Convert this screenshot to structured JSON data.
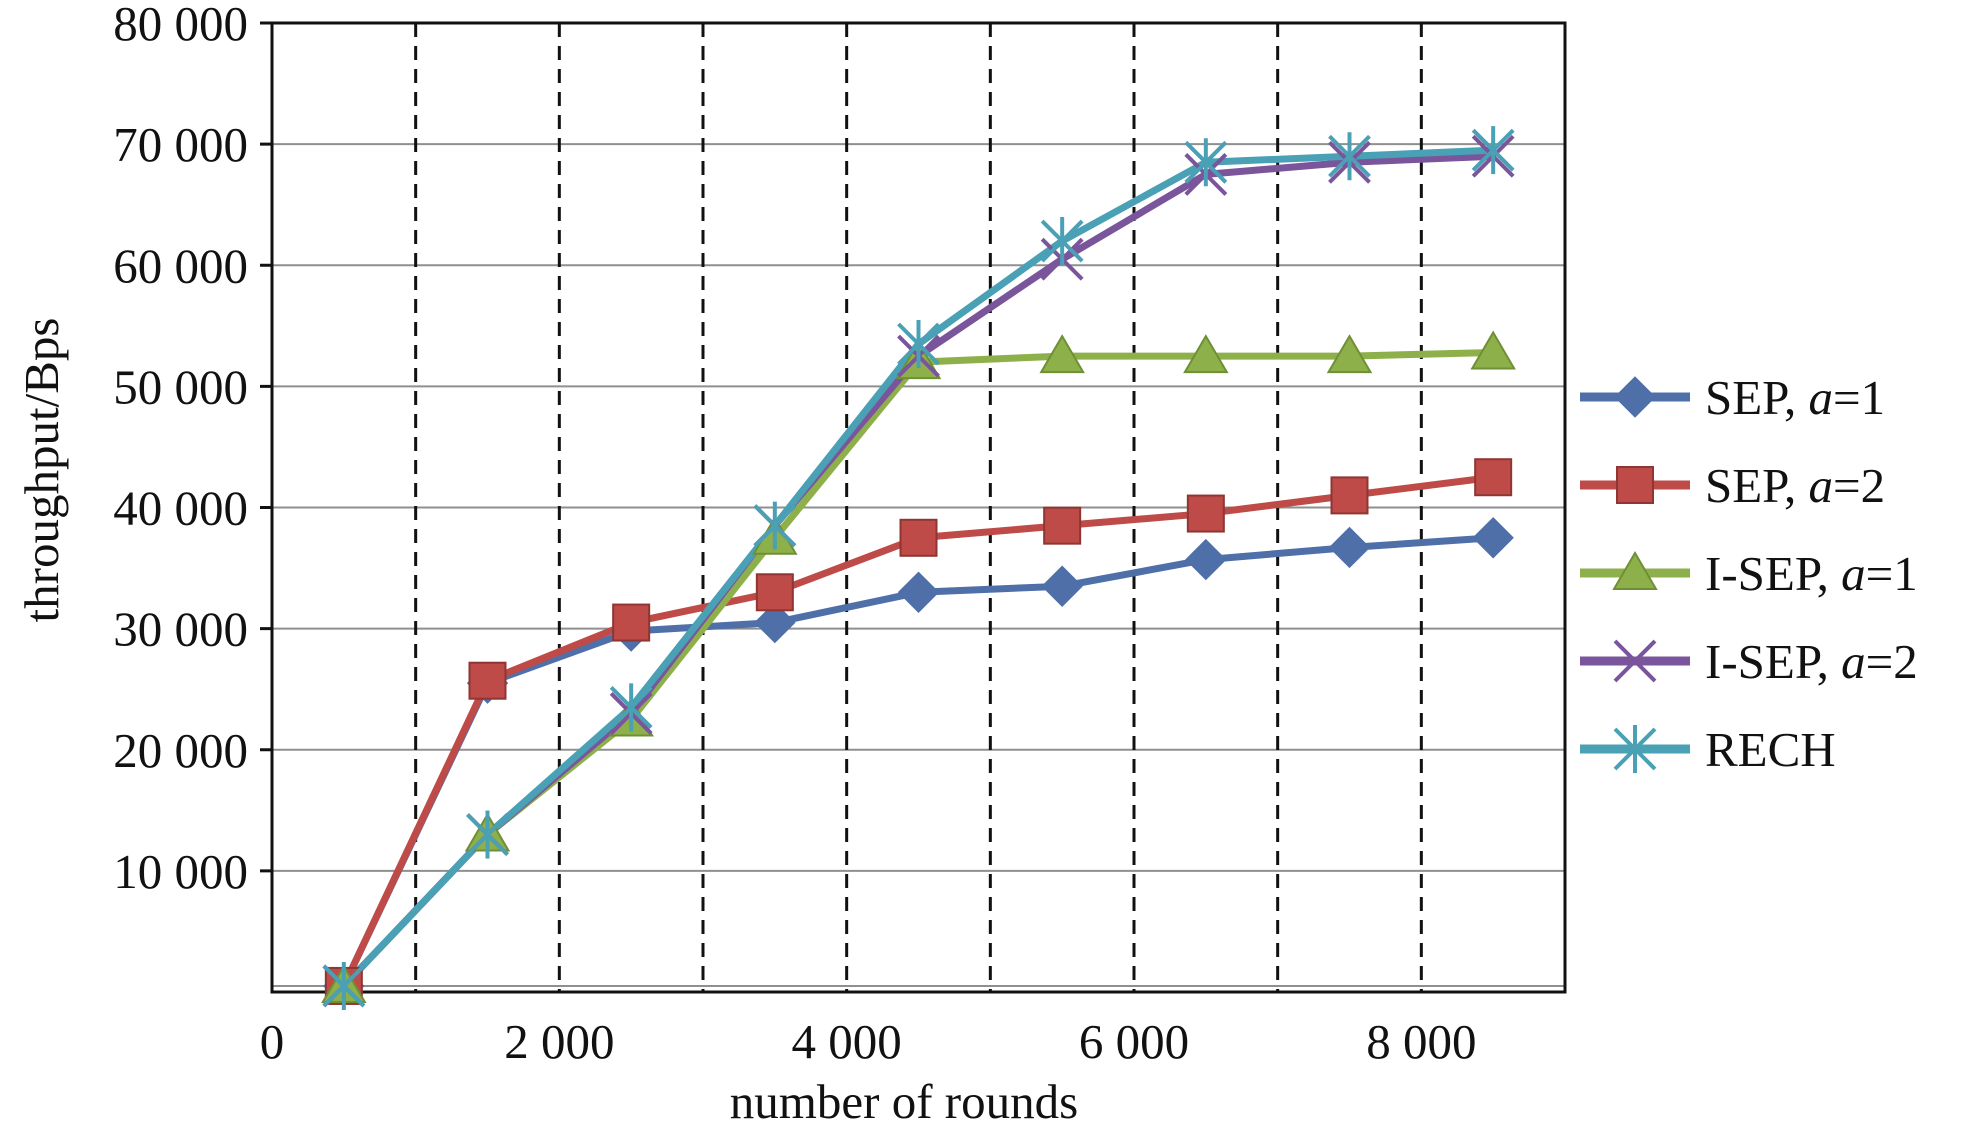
{
  "chart_data": {
    "type": "line",
    "xlabel": "number of rounds",
    "ylabel": "throughput/Bps",
    "xlim": [
      0,
      9000
    ],
    "ylim": [
      0,
      80000
    ],
    "x_ticks": [
      0,
      2000,
      4000,
      6000,
      8000
    ],
    "x_tick_labels": [
      "0",
      "2 000",
      "4 000",
      "6 000",
      "8 000"
    ],
    "y_ticks": [
      10000,
      20000,
      30000,
      40000,
      50000,
      60000,
      70000,
      80000
    ],
    "y_tick_labels": [
      "10 000",
      "20 000",
      "30 000",
      "40 000",
      "50 000",
      "60 000",
      "70 000",
      "80 000"
    ],
    "vertical_gridlines": [
      1000,
      2000,
      3000,
      4000,
      5000,
      6000,
      7000,
      8000
    ],
    "grid": true,
    "legend_position": "right",
    "x": [
      500,
      1500,
      2500,
      3500,
      4500,
      5500,
      6500,
      7500,
      8500
    ],
    "series": [
      {
        "name": "SEP, a=1",
        "legend_prefix": "SEP, ",
        "legend_var": "a",
        "legend_suffix": "=1",
        "color": "#4F6FA8",
        "marker": "diamond",
        "values": [
          500,
          25500,
          29800,
          30500,
          33000,
          33500,
          35700,
          36700,
          37500
        ]
      },
      {
        "name": "SEP, a=2",
        "legend_prefix": "SEP, ",
        "legend_var": "a",
        "legend_suffix": "=2",
        "color": "#BE4B48",
        "marker": "square",
        "values": [
          500,
          25700,
          30500,
          33000,
          37500,
          38500,
          39500,
          41000,
          42500
        ]
      },
      {
        "name": "I-SEP, a=1",
        "legend_prefix": "I-SEP, ",
        "legend_var": "a",
        "legend_suffix": "=1",
        "color": "#8EB04B",
        "marker": "triangle",
        "values": [
          500,
          13000,
          22500,
          37500,
          52000,
          52500,
          52500,
          52500,
          52800
        ]
      },
      {
        "name": "I-SEP, a=2",
        "legend_prefix": "I-SEP, ",
        "legend_var": "a",
        "legend_suffix": "=2",
        "color": "#7B559B",
        "marker": "x",
        "values": [
          500,
          13000,
          23000,
          38500,
          52500,
          60500,
          67500,
          68500,
          69000
        ]
      },
      {
        "name": "RECH",
        "legend_prefix": "RECH",
        "legend_var": "",
        "legend_suffix": "",
        "color": "#4AA0B5",
        "marker": "star",
        "values": [
          500,
          13000,
          23500,
          38500,
          53500,
          62000,
          68500,
          69000,
          69500
        ]
      }
    ]
  }
}
